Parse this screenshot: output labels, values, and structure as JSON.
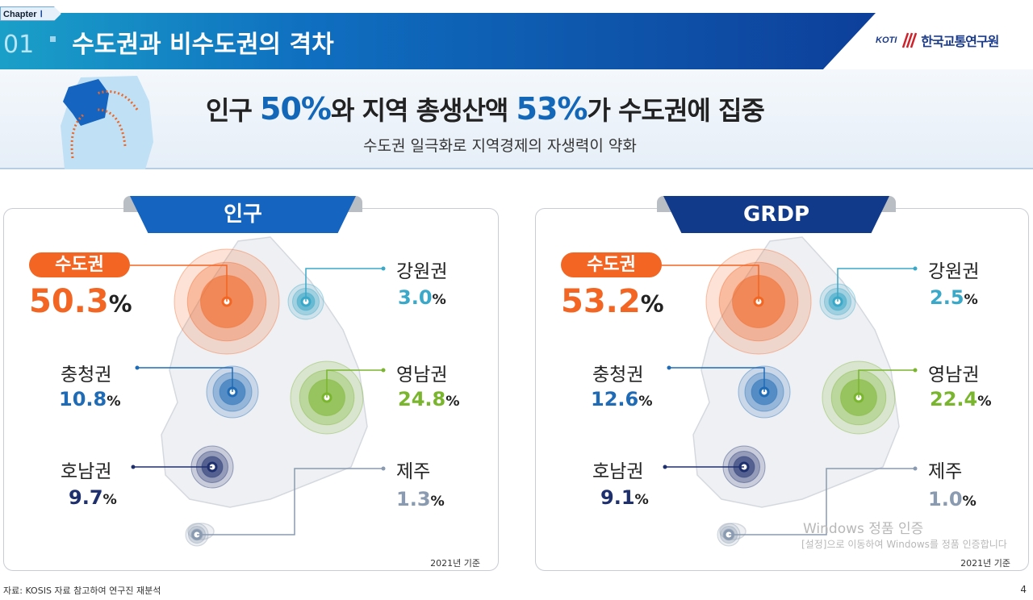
{
  "header": {
    "chapter": "Chapter",
    "chapter_num": "Ⅰ",
    "section_num": "01",
    "title": "수도권과 비수도권의 격차",
    "logo_abbr": "KOTI",
    "logo_name": "한국교통연구원"
  },
  "hero": {
    "h_pre": "인구 ",
    "h_v1": "50%",
    "h_mid": "와 지역 총생산액 ",
    "h_v2": "53%",
    "h_post": "가 수도권에 집중",
    "subtitle": "수도권 일극화로 지역경제의 자생력이 약화"
  },
  "panels": [
    {
      "tab": "인구",
      "base": "2021년 기준",
      "tab_color": "#1565c0",
      "regions": [
        {
          "name": "수도권",
          "value": "50.3",
          "unit": "%",
          "color": "#f26522"
        },
        {
          "name": "강원권",
          "value": "3.0",
          "unit": "%",
          "color": "#3aa8c8"
        },
        {
          "name": "충청권",
          "value": "10.8",
          "unit": "%",
          "color": "#1f6bb5"
        },
        {
          "name": "영남권",
          "value": "24.8",
          "unit": "%",
          "color": "#7ab52e"
        },
        {
          "name": "호남권",
          "value": "9.7",
          "unit": "%",
          "color": "#1e2f6e"
        },
        {
          "name": "제주",
          "value": "1.3",
          "unit": "%",
          "color": "#8a9ab0"
        }
      ]
    },
    {
      "tab": "GRDP",
      "base": "2021년 기준",
      "tab_color": "#123a8a",
      "regions": [
        {
          "name": "수도권",
          "value": "53.2",
          "unit": "%",
          "color": "#f26522"
        },
        {
          "name": "강원권",
          "value": "2.5",
          "unit": "%",
          "color": "#3aa8c8"
        },
        {
          "name": "충청권",
          "value": "12.6",
          "unit": "%",
          "color": "#1f6bb5"
        },
        {
          "name": "영남권",
          "value": "22.4",
          "unit": "%",
          "color": "#7ab52e"
        },
        {
          "name": "호남권",
          "value": "9.1",
          "unit": "%",
          "color": "#1e2f6e"
        },
        {
          "name": "제주",
          "value": "1.0",
          "unit": "%",
          "color": "#8a9ab0"
        }
      ]
    }
  ],
  "footer": {
    "source": "자료: KOSIS 자료 참고하여 연구진 재분석",
    "page": "4"
  },
  "watermark": {
    "line1": "Windows 정품 인증",
    "line2": "[설정]으로 이동하여 Windows를 정품 인증합니다"
  }
}
